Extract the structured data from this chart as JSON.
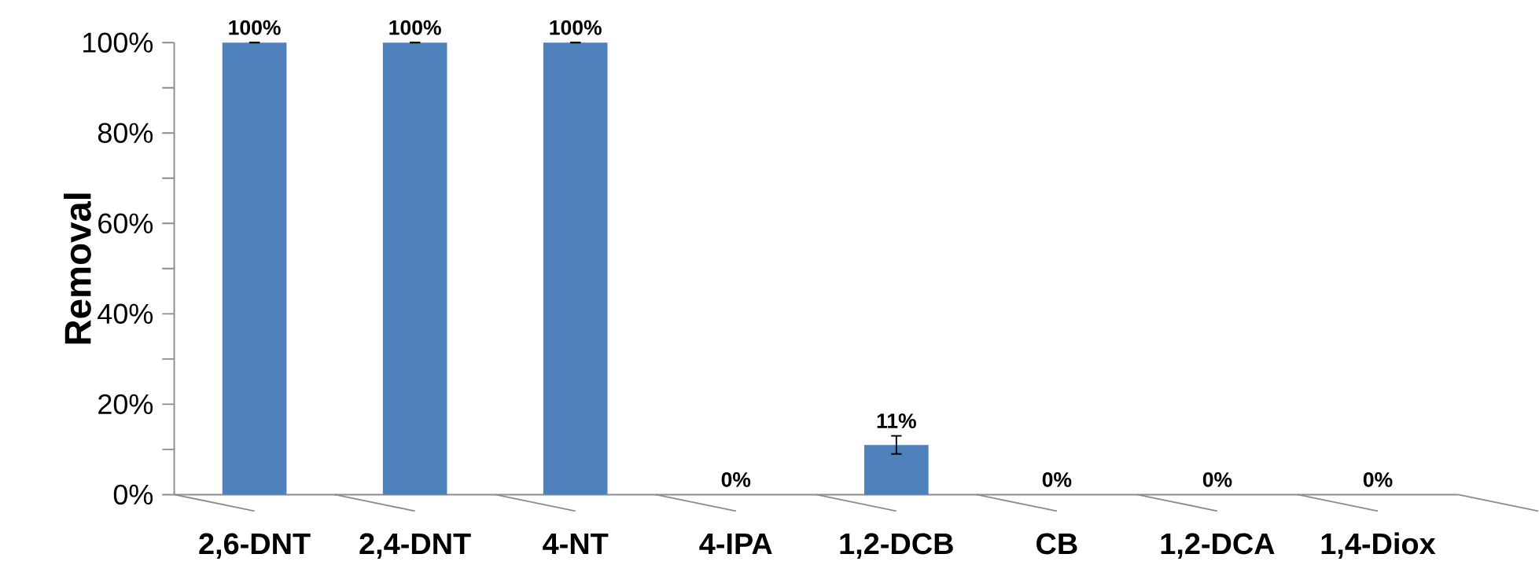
{
  "chart_data": {
    "type": "bar",
    "ylabel": "Removal",
    "categories": [
      "2,6-DNT",
      "2,4-DNT",
      "4-NT",
      "4-IPA",
      "1,2-DCB",
      "CB",
      "1,2-DCA",
      "1,4-Diox"
    ],
    "values": [
      100,
      100,
      100,
      0,
      11,
      0,
      0,
      0
    ],
    "value_labels": [
      "100%",
      "100%",
      "100%",
      "0%",
      "11%",
      "0%",
      "0%",
      "0%"
    ],
    "errors": [
      0,
      0,
      0,
      null,
      2,
      null,
      null,
      null
    ],
    "color": "#4f81bd",
    "ylim": [
      0,
      100
    ],
    "yticks": [
      {
        "value": 0,
        "label": "0%"
      },
      {
        "value": 10,
        "label": null
      },
      {
        "value": 20,
        "label": "20%"
      },
      {
        "value": 30,
        "label": null
      },
      {
        "value": 40,
        "label": "40%"
      },
      {
        "value": 50,
        "label": null
      },
      {
        "value": 60,
        "label": "60%"
      },
      {
        "value": 70,
        "label": null
      },
      {
        "value": 80,
        "label": "80%"
      },
      {
        "value": 90,
        "label": null
      },
      {
        "value": 100,
        "label": "100%"
      }
    ],
    "grid": false
  }
}
